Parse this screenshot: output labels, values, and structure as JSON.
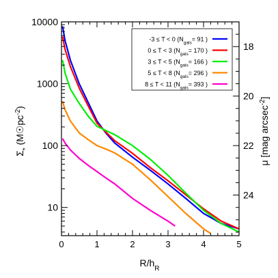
{
  "chart_data": {
    "type": "line",
    "title": "",
    "xlabel": "R/h",
    "xlabel_sub": "R",
    "ylabel_left": "Σ",
    "ylabel_left_sub": "*",
    "ylabel_left_units": " (M☉pc",
    "ylabel_left_units_sup": "-2",
    "ylabel_left_units_end": ")",
    "ylabel_right": "μ [mag arcsec",
    "ylabel_right_sup": "-2",
    "ylabel_right_end": "]",
    "xlim": [
      0,
      5
    ],
    "ylim_left": [
      3.5,
      10000
    ],
    "y_scale": "log",
    "x_ticks": [
      0,
      1,
      2,
      3,
      4,
      5
    ],
    "x_tick_labels": [
      "0",
      "1",
      "2",
      "3",
      "4",
      "5"
    ],
    "y_ticks": [
      10,
      100,
      1000,
      10000
    ],
    "y_tick_labels": [
      "10",
      "100",
      "1000",
      "10000"
    ],
    "right_ticks": [
      18,
      20,
      22,
      24
    ],
    "right_tick_labels": [
      "18",
      "20",
      "22",
      "24"
    ],
    "right_axis_mu_at_sigma_1000": 19.5,
    "legend_position": "top-right",
    "grid": false,
    "series": [
      {
        "label_prefix": "-3 ≤ T < 0  (N",
        "label_sub": "gals",
        "label_suffix": "= 91 )",
        "color": "#0000ff",
        "x": [
          0.03,
          0.1,
          0.25,
          0.5,
          0.75,
          1.0,
          1.25,
          1.5,
          2.0,
          2.5,
          3.0,
          3.5,
          4.0,
          4.5,
          5.0
        ],
        "y": [
          8500,
          5000,
          2400,
          1000,
          500,
          250,
          160,
          110,
          65,
          40,
          24,
          14,
          8,
          5.5,
          4.5
        ]
      },
      {
        "label_prefix": "0 ≤ T < 3  (N",
        "label_sub": "gals",
        "label_suffix": "= 170 )",
        "color": "#ff0000",
        "x": [
          0.03,
          0.1,
          0.25,
          0.5,
          0.75,
          1.0,
          1.25,
          1.5,
          2.0,
          2.5,
          3.0,
          3.5,
          4.0,
          4.5,
          5.0
        ],
        "y": [
          5800,
          3600,
          1900,
          850,
          440,
          230,
          165,
          120,
          75,
          44,
          27,
          16,
          9.5,
          6,
          4.5
        ]
      },
      {
        "label_prefix": "3 ≤ T < 5  (N",
        "label_sub": "gals",
        "label_suffix": "= 166 )",
        "color": "#00ee00",
        "x": [
          0.03,
          0.1,
          0.25,
          0.5,
          0.75,
          1.0,
          1.25,
          1.5,
          2.0,
          2.5,
          3.0,
          3.5,
          4.0,
          4.5,
          5.0
        ],
        "y": [
          2400,
          1500,
          820,
          480,
          300,
          205,
          175,
          150,
          100,
          60,
          33,
          17,
          9,
          5.5,
          4
        ]
      },
      {
        "label_prefix": "5 ≤ T < 8  (N",
        "label_sub": "gals",
        "label_suffix": "= 296 )",
        "color": "#ff8800",
        "x": [
          0.03,
          0.1,
          0.25,
          0.5,
          0.75,
          1.0,
          1.25,
          1.5,
          2.0,
          2.5,
          3.0,
          3.5,
          4.0,
          4.2
        ],
        "y": [
          520,
          380,
          250,
          160,
          125,
          100,
          88,
          76,
          50,
          28,
          15,
          8,
          4.5,
          3.8
        ]
      },
      {
        "label_prefix": "8 ≤ T < 11  (N",
        "label_sub": "gals",
        "label_suffix": "= 393 )",
        "color": "#ff00cc",
        "x": [
          0.03,
          0.1,
          0.25,
          0.5,
          0.75,
          1.0,
          1.25,
          1.5,
          2.0,
          2.5,
          3.0,
          3.2
        ],
        "y": [
          130,
          110,
          85,
          62,
          48,
          38,
          30,
          24,
          14,
          9,
          6,
          5
        ]
      }
    ]
  }
}
